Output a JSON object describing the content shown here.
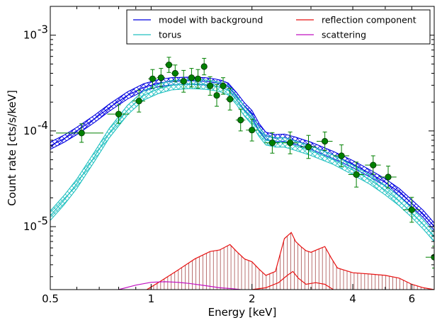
{
  "chart_data": {
    "type": "line",
    "xlabel": "Energy [keV]",
    "ylabel": "Count rate [cts/s/keV]",
    "x_scale": "log",
    "y_scale": "log",
    "xlim": [
      0.5,
      7.0
    ],
    "ylim": [
      2.2e-06,
      0.002
    ],
    "grid": false,
    "legend_position": "top-right",
    "x_ticks": [
      {
        "value": 0.5,
        "label": "0.5"
      },
      {
        "value": 1,
        "label": "1"
      },
      {
        "value": 2,
        "label": "2"
      },
      {
        "value": 4,
        "label": "4"
      },
      {
        "value": 6,
        "label": "6"
      }
    ],
    "y_ticks": [
      {
        "value": 1e-05,
        "base": "10",
        "exp": "-5"
      },
      {
        "value": 0.0001,
        "base": "10",
        "exp": "-4"
      },
      {
        "value": 0.001,
        "base": "10",
        "exp": "-3"
      }
    ],
    "legend": [
      {
        "label": "model with background",
        "color": "#0000e0"
      },
      {
        "label": "torus",
        "color": "#20c0c0"
      },
      {
        "label": "reflection component",
        "color": "#e81010"
      },
      {
        "label": "scattering",
        "color": "#c010c0"
      }
    ],
    "series": [
      {
        "name": "model with background",
        "color": "#0000e0",
        "band_rel": 0.09,
        "x": [
          0.5,
          0.55,
          0.6,
          0.68,
          0.75,
          0.85,
          0.95,
          1.05,
          1.15,
          1.3,
          1.45,
          1.55,
          1.62,
          1.7,
          1.8,
          1.9,
          2.0,
          2.1,
          2.2,
          2.35,
          2.5,
          2.7,
          3.0,
          3.5,
          4.0,
          4.5,
          5.0,
          5.5,
          6.0,
          6.5,
          7.0
        ],
        "y": [
          7e-05,
          8.3e-05,
          0.0001,
          0.000135,
          0.000175,
          0.000235,
          0.000285,
          0.000315,
          0.00033,
          0.000335,
          0.00033,
          0.00032,
          0.00031,
          0.00029,
          0.00023,
          0.00018,
          0.00015,
          0.00011,
          8.9e-05,
          8.4e-05,
          8.5e-05,
          7.9e-05,
          7e-05,
          5.6e-05,
          4.5e-05,
          3.6e-05,
          2.9e-05,
          2.3e-05,
          1.75e-05,
          1.35e-05,
          1e-05
        ]
      },
      {
        "name": "torus",
        "color": "#20c0c0",
        "band_rel": 0.12,
        "x": [
          0.5,
          0.55,
          0.6,
          0.68,
          0.75,
          0.85,
          0.95,
          1.05,
          1.15,
          1.3,
          1.45,
          1.55,
          1.62,
          1.7,
          1.8,
          1.9,
          2.0,
          2.1,
          2.2,
          2.35,
          2.5,
          2.7,
          3.0,
          3.5,
          4.0,
          4.5,
          5.0,
          5.5,
          6.0,
          6.5,
          7.0
        ],
        "y": [
          1.3e-05,
          1.9e-05,
          2.8e-05,
          5.5e-05,
          9.5e-05,
          0.000165,
          0.000235,
          0.000275,
          0.0003,
          0.00031,
          0.000305,
          0.000295,
          0.000285,
          0.000265,
          0.00021,
          0.00016,
          0.00013,
          9.8e-05,
          8e-05,
          7.6e-05,
          7.6e-05,
          7e-05,
          6.2e-05,
          5e-05,
          3.9e-05,
          3.1e-05,
          2.4e-05,
          1.85e-05,
          1.4e-05,
          1.05e-05,
          7.8e-06
        ]
      },
      {
        "name": "reflection component",
        "color": "#e81010",
        "band_rel": 0,
        "x": [
          0.88,
          0.95,
          1.05,
          1.2,
          1.35,
          1.5,
          1.6,
          1.72,
          1.8,
          1.9,
          2.0,
          2.1,
          2.2,
          2.35,
          2.5,
          2.62,
          2.7,
          2.8,
          2.9,
          3.0,
          3.15,
          3.3,
          3.45,
          3.6,
          4.0,
          4.5,
          5.0,
          5.5,
          6.0,
          6.5,
          7.0
        ],
        "y": [
          1.8e-06,
          2.1e-06,
          2.6e-06,
          3.5e-06,
          4.6e-06,
          5.5e-06,
          5.7e-06,
          6.5e-06,
          5.5e-06,
          4.6e-06,
          4.3e-06,
          3.6e-06,
          3.1e-06,
          3.4e-06,
          7.5e-06,
          8.7e-06,
          7e-06,
          6.2e-06,
          5.6e-06,
          5.4e-06,
          5.8e-06,
          6.2e-06,
          4.7e-06,
          3.7e-06,
          3.3e-06,
          3.2e-06,
          3.1e-06,
          2.9e-06,
          2.5e-06,
          2.3e-06,
          2.2e-06
        ]
      },
      {
        "name": "scattering",
        "color": "#c010c0",
        "band_rel": 0,
        "x": [
          0.8,
          0.9,
          1.0,
          1.1,
          1.2,
          1.3,
          1.45,
          1.6,
          1.75,
          1.85
        ],
        "y": [
          2.2e-06,
          2.45e-06,
          2.62e-06,
          2.66e-06,
          2.62e-06,
          2.55e-06,
          2.42e-06,
          2.3e-06,
          2.25e-06,
          2.2e-06
        ]
      },
      {
        "name": "",
        "color": "#e81010",
        "band_rel": 0,
        "x": [
          2.0,
          2.2,
          2.4,
          2.55,
          2.65,
          2.75,
          2.9,
          3.1,
          3.3,
          3.5
        ],
        "y": [
          2.2e-06,
          2.3e-06,
          2.6e-06,
          3.1e-06,
          3.4e-06,
          2.9e-06,
          2.5e-06,
          2.6e-06,
          2.5e-06,
          2.2e-06
        ]
      }
    ],
    "data_points": {
      "color": "#008000",
      "x": [
        0.62,
        0.8,
        0.92,
        1.01,
        1.07,
        1.13,
        1.18,
        1.25,
        1.32,
        1.38,
        1.44,
        1.5,
        1.57,
        1.64,
        1.72,
        1.85,
        2.0,
        2.3,
        2.6,
        2.95,
        3.3,
        3.7,
        4.1,
        4.6,
        5.1,
        6.0,
        7.0
      ],
      "y": [
        9.5e-05,
        0.00015,
        0.000205,
        0.00035,
        0.00036,
        0.00049,
        0.0004,
        0.00033,
        0.00036,
        0.00035,
        0.00047,
        0.000295,
        0.000235,
        0.000295,
        0.000215,
        0.00013,
        0.000102,
        7.5e-05,
        7.5e-05,
        6.8e-05,
        7.8e-05,
        5.5e-05,
        3.5e-05,
        4.4e-05,
        3.3e-05,
        1.5e-05,
        4.8e-06
      ],
      "xerr": [
        0.1,
        0.06,
        0.04,
        0.03,
        0.03,
        0.03,
        0.03,
        0.03,
        0.03,
        0.03,
        0.03,
        0.03,
        0.03,
        0.03,
        0.05,
        0.06,
        0.08,
        0.12,
        0.14,
        0.16,
        0.18,
        0.2,
        0.22,
        0.25,
        0.3,
        0.35,
        0.4
      ],
      "yerr_rel": [
        0.25,
        0.25,
        0.3,
        0.25,
        0.25,
        0.2,
        0.22,
        0.3,
        0.25,
        0.25,
        0.22,
        0.25,
        0.3,
        0.22,
        0.3,
        0.3,
        0.3,
        0.28,
        0.3,
        0.32,
        0.25,
        0.3,
        0.35,
        0.25,
        0.3,
        0.35,
        0.3
      ]
    }
  }
}
